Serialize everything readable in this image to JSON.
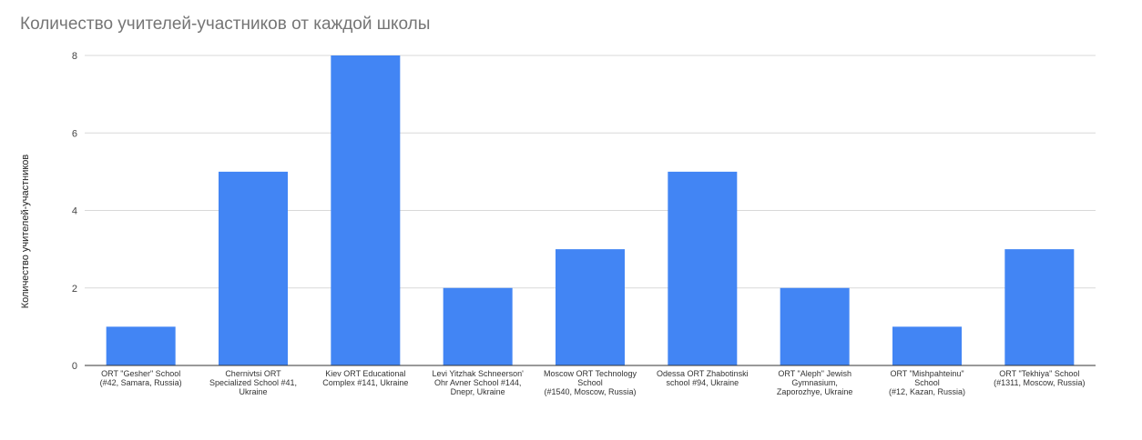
{
  "chart_data": {
    "type": "bar",
    "title": "Количество учителей-участников от каждой школы",
    "xlabel": "",
    "ylabel": "Количество учителей-участников",
    "ylim": [
      0,
      8
    ],
    "yticks": [
      0,
      2,
      4,
      6,
      8
    ],
    "grid": true,
    "bar_color": "#4285f4",
    "categories": [
      [
        "ORT \"Gesher\" School",
        "(#42, Samara, Russia)"
      ],
      [
        "Chernivtsi ORT",
        "Specialized School #41,",
        "Ukraine"
      ],
      [
        "Kiev ORT Educational",
        "Complex #141, Ukraine"
      ],
      [
        "Levi Yitzhak Schneerson'",
        "Ohr Avner School #144,",
        "Dnepr, Ukraine"
      ],
      [
        "Moscow ORT Technology",
        "School",
        "(#1540, Moscow, Russia)"
      ],
      [
        "Odessa ORT Zhabotinski",
        "school #94, Ukraine"
      ],
      [
        "ORT \"Aleph\" Jewish",
        "Gymnasium,",
        "Zaporozhye, Ukraine"
      ],
      [
        "ORT \"Mishpahteinu\"",
        "School",
        "(#12, Kazan, Russia)"
      ],
      [
        "ORT \"Tekhiya\" School",
        "(#1311, Moscow, Russia)"
      ]
    ],
    "values": [
      1,
      5,
      8,
      2,
      3,
      5,
      2,
      1,
      3
    ]
  }
}
